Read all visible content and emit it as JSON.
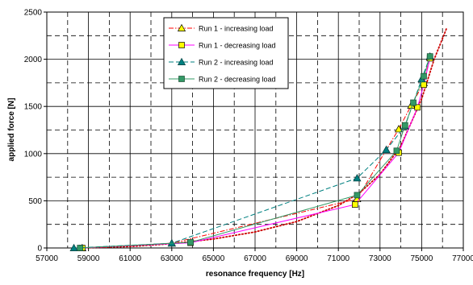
{
  "chart_data": {
    "type": "scatter",
    "title": "",
    "xlabel": "resonance frequency [Hz]",
    "ylabel": "applied force [N]",
    "xlim": [
      57000,
      77000
    ],
    "ylim": [
      0,
      2500
    ],
    "x_ticks": [
      57000,
      59000,
      61000,
      63000,
      65000,
      67000,
      69000,
      71000,
      73000,
      75000,
      77000
    ],
    "y_ticks": [
      0,
      500,
      1000,
      1500,
      2000,
      2500
    ],
    "grid": "major solid + dashed minor",
    "legend_position": "top-center",
    "series": [
      {
        "name": "Run 1 - increasing load",
        "color": "#ff0000",
        "marker": "triangle",
        "marker_fill": "#ffff00",
        "line_style": "dash-dot",
        "points": [
          [
            58700,
            0
          ],
          [
            63000,
            50
          ],
          [
            71900,
            520
          ],
          [
            73300,
            1040
          ],
          [
            73900,
            1260
          ],
          [
            74500,
            1510
          ],
          [
            75100,
            1750
          ],
          [
            75400,
            2020
          ]
        ]
      },
      {
        "name": "Run 1 - decreasing load",
        "color": "#ff00ff",
        "marker": "square",
        "marker_fill": "#ffff00",
        "line_style": "solid",
        "points": [
          [
            58700,
            0
          ],
          [
            63900,
            55
          ],
          [
            71800,
            460
          ],
          [
            73900,
            1010
          ],
          [
            74800,
            1490
          ],
          [
            75100,
            1730
          ],
          [
            75400,
            2010
          ]
        ]
      },
      {
        "name": "Run 2 - increasing load",
        "color": "#008080",
        "marker": "triangle",
        "marker_fill": "#008080",
        "line_style": "dashed",
        "points": [
          [
            58300,
            0
          ],
          [
            63000,
            50
          ],
          [
            71900,
            740
          ],
          [
            73300,
            1040
          ],
          [
            74200,
            1290
          ],
          [
            75000,
            1790
          ],
          [
            75400,
            2030
          ]
        ]
      },
      {
        "name": "Run 2 - decreasing load",
        "color": "#339966",
        "marker": "square",
        "marker_fill": "#339966",
        "line_style": "solid",
        "points": [
          [
            58600,
            0
          ],
          [
            63900,
            60
          ],
          [
            71900,
            560
          ],
          [
            73800,
            1030
          ],
          [
            74200,
            1300
          ],
          [
            74600,
            1540
          ],
          [
            75100,
            1820
          ],
          [
            75400,
            2030
          ]
        ]
      }
    ],
    "trendline": {
      "color": "#cc0000",
      "line_style": "dotted",
      "points": [
        [
          58500,
          0
        ],
        [
          61000,
          15
        ],
        [
          63000,
          45
        ],
        [
          65000,
          95
        ],
        [
          67000,
          170
        ],
        [
          69000,
          280
        ],
        [
          71000,
          450
        ],
        [
          72000,
          580
        ],
        [
          73000,
          780
        ],
        [
          74000,
          1080
        ],
        [
          75000,
          1580
        ],
        [
          75600,
          2000
        ],
        [
          76200,
          2330
        ]
      ]
    }
  }
}
